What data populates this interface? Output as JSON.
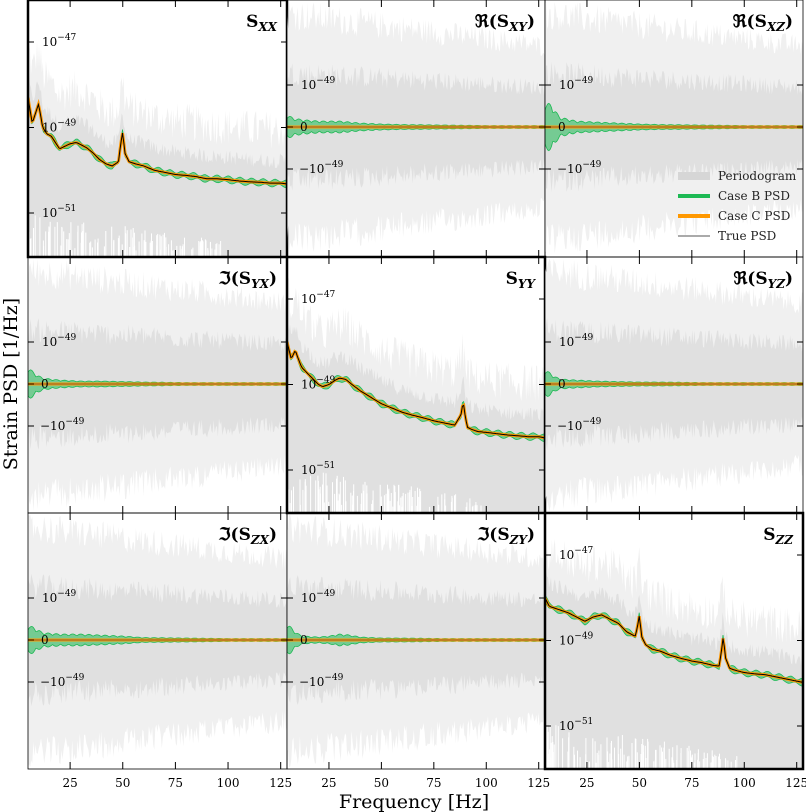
{
  "chart_data": {
    "type": "line",
    "xlabel": "Frequency [Hz]",
    "ylabel": "Strain PSD [1/Hz]",
    "xlim": [
      5,
      128
    ],
    "x_ticks": [
      25,
      50,
      75,
      100,
      125
    ],
    "x_tick_labels": [
      "25",
      "50",
      "75",
      "100",
      "125"
    ],
    "legend": {
      "placement": "right, inside Re(S_XZ) panel",
      "entries": [
        {
          "label": "Periodogram",
          "color": "#d6d6d6"
        },
        {
          "label": "Case B PSD",
          "color": "#1db954"
        },
        {
          "label": "Case C PSD",
          "color": "#ff9800"
        },
        {
          "label": "True PSD",
          "color": "#555555"
        }
      ]
    },
    "colors": {
      "periodogram_dark": "#e0e0e0",
      "periodogram_light": "#f0f0f0",
      "case_b": "#1db954",
      "case_c": "#ff9800",
      "true_psd": "#000000"
    },
    "panels": [
      {
        "kind": "diag",
        "title_main": "S",
        "title_sub": "XX",
        "title_pre": "",
        "title_post": "",
        "scale": "log",
        "y_tick_labels": [
          {
            "base": "10",
            "exp": "−47"
          },
          {
            "base": "10",
            "exp": "−49"
          },
          {
            "base": "10",
            "exp": "−51"
          }
        ],
        "true_psd": {
          "x": [
            5,
            7,
            9,
            10,
            12,
            14,
            16,
            18,
            20,
            22,
            25,
            28,
            30,
            33,
            36,
            39,
            42,
            45,
            48,
            49,
            50,
            51,
            53,
            56,
            60,
            65,
            70,
            75,
            80,
            85,
            90,
            95,
            100,
            105,
            110,
            115,
            120,
            125,
            128
          ],
          "log10": [
            -48.3,
            -48.9,
            -48.6,
            -48.45,
            -49.0,
            -49.15,
            -49.2,
            -49.35,
            -49.5,
            -49.45,
            -49.38,
            -49.35,
            -49.4,
            -49.48,
            -49.6,
            -49.75,
            -49.85,
            -49.9,
            -49.8,
            -49.4,
            -49.1,
            -49.6,
            -49.8,
            -49.85,
            -49.9,
            -50.0,
            -50.05,
            -50.1,
            -50.12,
            -50.15,
            -50.2,
            -50.2,
            -50.22,
            -50.25,
            -50.27,
            -50.28,
            -50.3,
            -50.3,
            -50.32
          ]
        }
      },
      {
        "kind": "offdiag",
        "title_main": "S",
        "title_sub": "XY",
        "title_pre": "ℜ(",
        "title_post": ")",
        "scale": "symlog",
        "y_tick_labels": [
          {
            "base": "10",
            "exp": "−49"
          },
          {
            "base": "0",
            "exp": ""
          },
          {
            "base": "−10",
            "exp": "−49"
          }
        ],
        "band_profile": {
          "x": [
            5,
            8,
            12,
            20,
            30,
            40,
            50,
            60,
            80,
            100,
            128
          ],
          "halfwidth": [
            0.25,
            0.18,
            0.15,
            0.12,
            0.12,
            0.08,
            0.06,
            0.05,
            0.04,
            0.03,
            0.03
          ]
        }
      },
      {
        "kind": "offdiag",
        "title_main": "S",
        "title_sub": "XZ",
        "title_pre": "ℜ(",
        "title_post": ")",
        "scale": "symlog",
        "y_tick_labels": [
          {
            "base": "10",
            "exp": "−49"
          },
          {
            "base": "0",
            "exp": ""
          },
          {
            "base": "−10",
            "exp": "−49"
          }
        ],
        "band_profile": {
          "x": [
            5,
            8,
            12,
            20,
            30,
            40,
            50,
            60,
            80,
            100,
            128
          ],
          "halfwidth": [
            0.5,
            0.45,
            0.2,
            0.12,
            0.1,
            0.08,
            0.06,
            0.05,
            0.04,
            0.03,
            0.03
          ]
        }
      },
      {
        "kind": "offdiag",
        "title_main": "S",
        "title_sub": "YX",
        "title_pre": "ℑ(",
        "title_post": ")",
        "scale": "symlog",
        "y_tick_labels": [
          {
            "base": "10",
            "exp": "−49"
          },
          {
            "base": "0",
            "exp": ""
          },
          {
            "base": "−10",
            "exp": "−49"
          }
        ],
        "band_profile": {
          "x": [
            5,
            8,
            12,
            20,
            30,
            40,
            50,
            60,
            80,
            100,
            128
          ],
          "halfwidth": [
            0.35,
            0.22,
            0.12,
            0.08,
            0.06,
            0.06,
            0.05,
            0.04,
            0.03,
            0.03,
            0.03
          ]
        }
      },
      {
        "kind": "diag",
        "title_main": "S",
        "title_sub": "YY",
        "title_pre": "",
        "title_post": "",
        "scale": "log",
        "y_tick_labels": [
          {
            "base": "10",
            "exp": "−47"
          },
          {
            "base": "10",
            "exp": "−49"
          },
          {
            "base": "10",
            "exp": "−51"
          }
        ],
        "true_psd": {
          "x": [
            5,
            7,
            9,
            10,
            12,
            14,
            16,
            18,
            20,
            22,
            25,
            28,
            30,
            33,
            36,
            40,
            45,
            50,
            55,
            60,
            65,
            70,
            75,
            80,
            85,
            88,
            89,
            90,
            91,
            93,
            96,
            100,
            105,
            110,
            115,
            120,
            125,
            128
          ],
          "log10": [
            -48.0,
            -48.4,
            -48.2,
            -48.35,
            -48.6,
            -48.7,
            -48.8,
            -48.9,
            -49.0,
            -49.05,
            -49.0,
            -48.9,
            -48.85,
            -48.88,
            -49.0,
            -49.15,
            -49.3,
            -49.45,
            -49.55,
            -49.65,
            -49.72,
            -49.78,
            -49.85,
            -49.9,
            -49.95,
            -49.7,
            -49.4,
            -49.75,
            -50.0,
            -50.05,
            -50.1,
            -50.12,
            -50.15,
            -50.18,
            -50.2,
            -50.22,
            -50.22,
            -50.25
          ]
        }
      },
      {
        "kind": "offdiag",
        "title_main": "S",
        "title_sub": "YZ",
        "title_pre": "ℜ(",
        "title_post": ")",
        "scale": "symlog",
        "y_tick_labels": [
          {
            "base": "10",
            "exp": "−49"
          },
          {
            "base": "0",
            "exp": ""
          },
          {
            "base": "−10",
            "exp": "−49"
          }
        ],
        "band_profile": {
          "x": [
            5,
            8,
            12,
            20,
            30,
            40,
            50,
            60,
            80,
            100,
            128
          ],
          "halfwidth": [
            0.3,
            0.2,
            0.1,
            0.08,
            0.06,
            0.05,
            0.04,
            0.04,
            0.03,
            0.03,
            0.03
          ]
        }
      },
      {
        "kind": "offdiag",
        "title_main": "S",
        "title_sub": "ZX",
        "title_pre": "ℑ(",
        "title_post": ")",
        "scale": "symlog",
        "y_tick_labels": [
          {
            "base": "10",
            "exp": "−49"
          },
          {
            "base": "0",
            "exp": ""
          },
          {
            "base": "−10",
            "exp": "−49"
          }
        ],
        "band_profile": {
          "x": [
            5,
            8,
            12,
            20,
            30,
            40,
            50,
            60,
            80,
            100,
            128
          ],
          "halfwidth": [
            0.3,
            0.25,
            0.15,
            0.12,
            0.12,
            0.1,
            0.08,
            0.05,
            0.04,
            0.03,
            0.03
          ]
        }
      },
      {
        "kind": "offdiag",
        "title_main": "S",
        "title_sub": "ZY",
        "title_pre": "ℑ(",
        "title_post": ")",
        "scale": "symlog",
        "y_tick_labels": [
          {
            "base": "10",
            "exp": "−49"
          },
          {
            "base": "0",
            "exp": ""
          },
          {
            "base": "−10",
            "exp": "−49"
          }
        ],
        "band_profile": {
          "x": [
            5,
            8,
            12,
            20,
            25,
            30,
            35,
            40,
            50,
            60,
            80,
            100,
            128
          ],
          "halfwidth": [
            0.35,
            0.2,
            0.08,
            0.06,
            0.08,
            0.12,
            0.1,
            0.06,
            0.04,
            0.04,
            0.03,
            0.03,
            0.03
          ]
        }
      },
      {
        "kind": "diag",
        "title_main": "S",
        "title_sub": "ZZ",
        "title_pre": "",
        "title_post": "",
        "scale": "log",
        "y_tick_labels": [
          {
            "base": "10",
            "exp": "−47"
          },
          {
            "base": "10",
            "exp": "−49"
          },
          {
            "base": "10",
            "exp": "−51"
          }
        ],
        "true_psd": {
          "x": [
            5,
            7,
            10,
            13,
            16,
            20,
            24,
            28,
            32,
            36,
            40,
            44,
            48,
            49,
            50,
            51,
            53,
            56,
            60,
            65,
            70,
            75,
            80,
            85,
            88,
            89,
            90,
            91,
            93,
            96,
            100,
            105,
            110,
            115,
            120,
            125,
            128
          ],
          "log10": [
            -48.0,
            -48.2,
            -48.25,
            -48.3,
            -48.35,
            -48.45,
            -48.55,
            -48.45,
            -48.4,
            -48.5,
            -48.6,
            -48.8,
            -48.9,
            -48.7,
            -48.4,
            -48.9,
            -49.1,
            -49.2,
            -49.25,
            -49.35,
            -49.42,
            -49.48,
            -49.52,
            -49.58,
            -49.6,
            -49.3,
            -48.9,
            -49.4,
            -49.65,
            -49.7,
            -49.75,
            -49.78,
            -49.8,
            -49.85,
            -49.9,
            -49.95,
            -49.98
          ]
        }
      }
    ]
  }
}
